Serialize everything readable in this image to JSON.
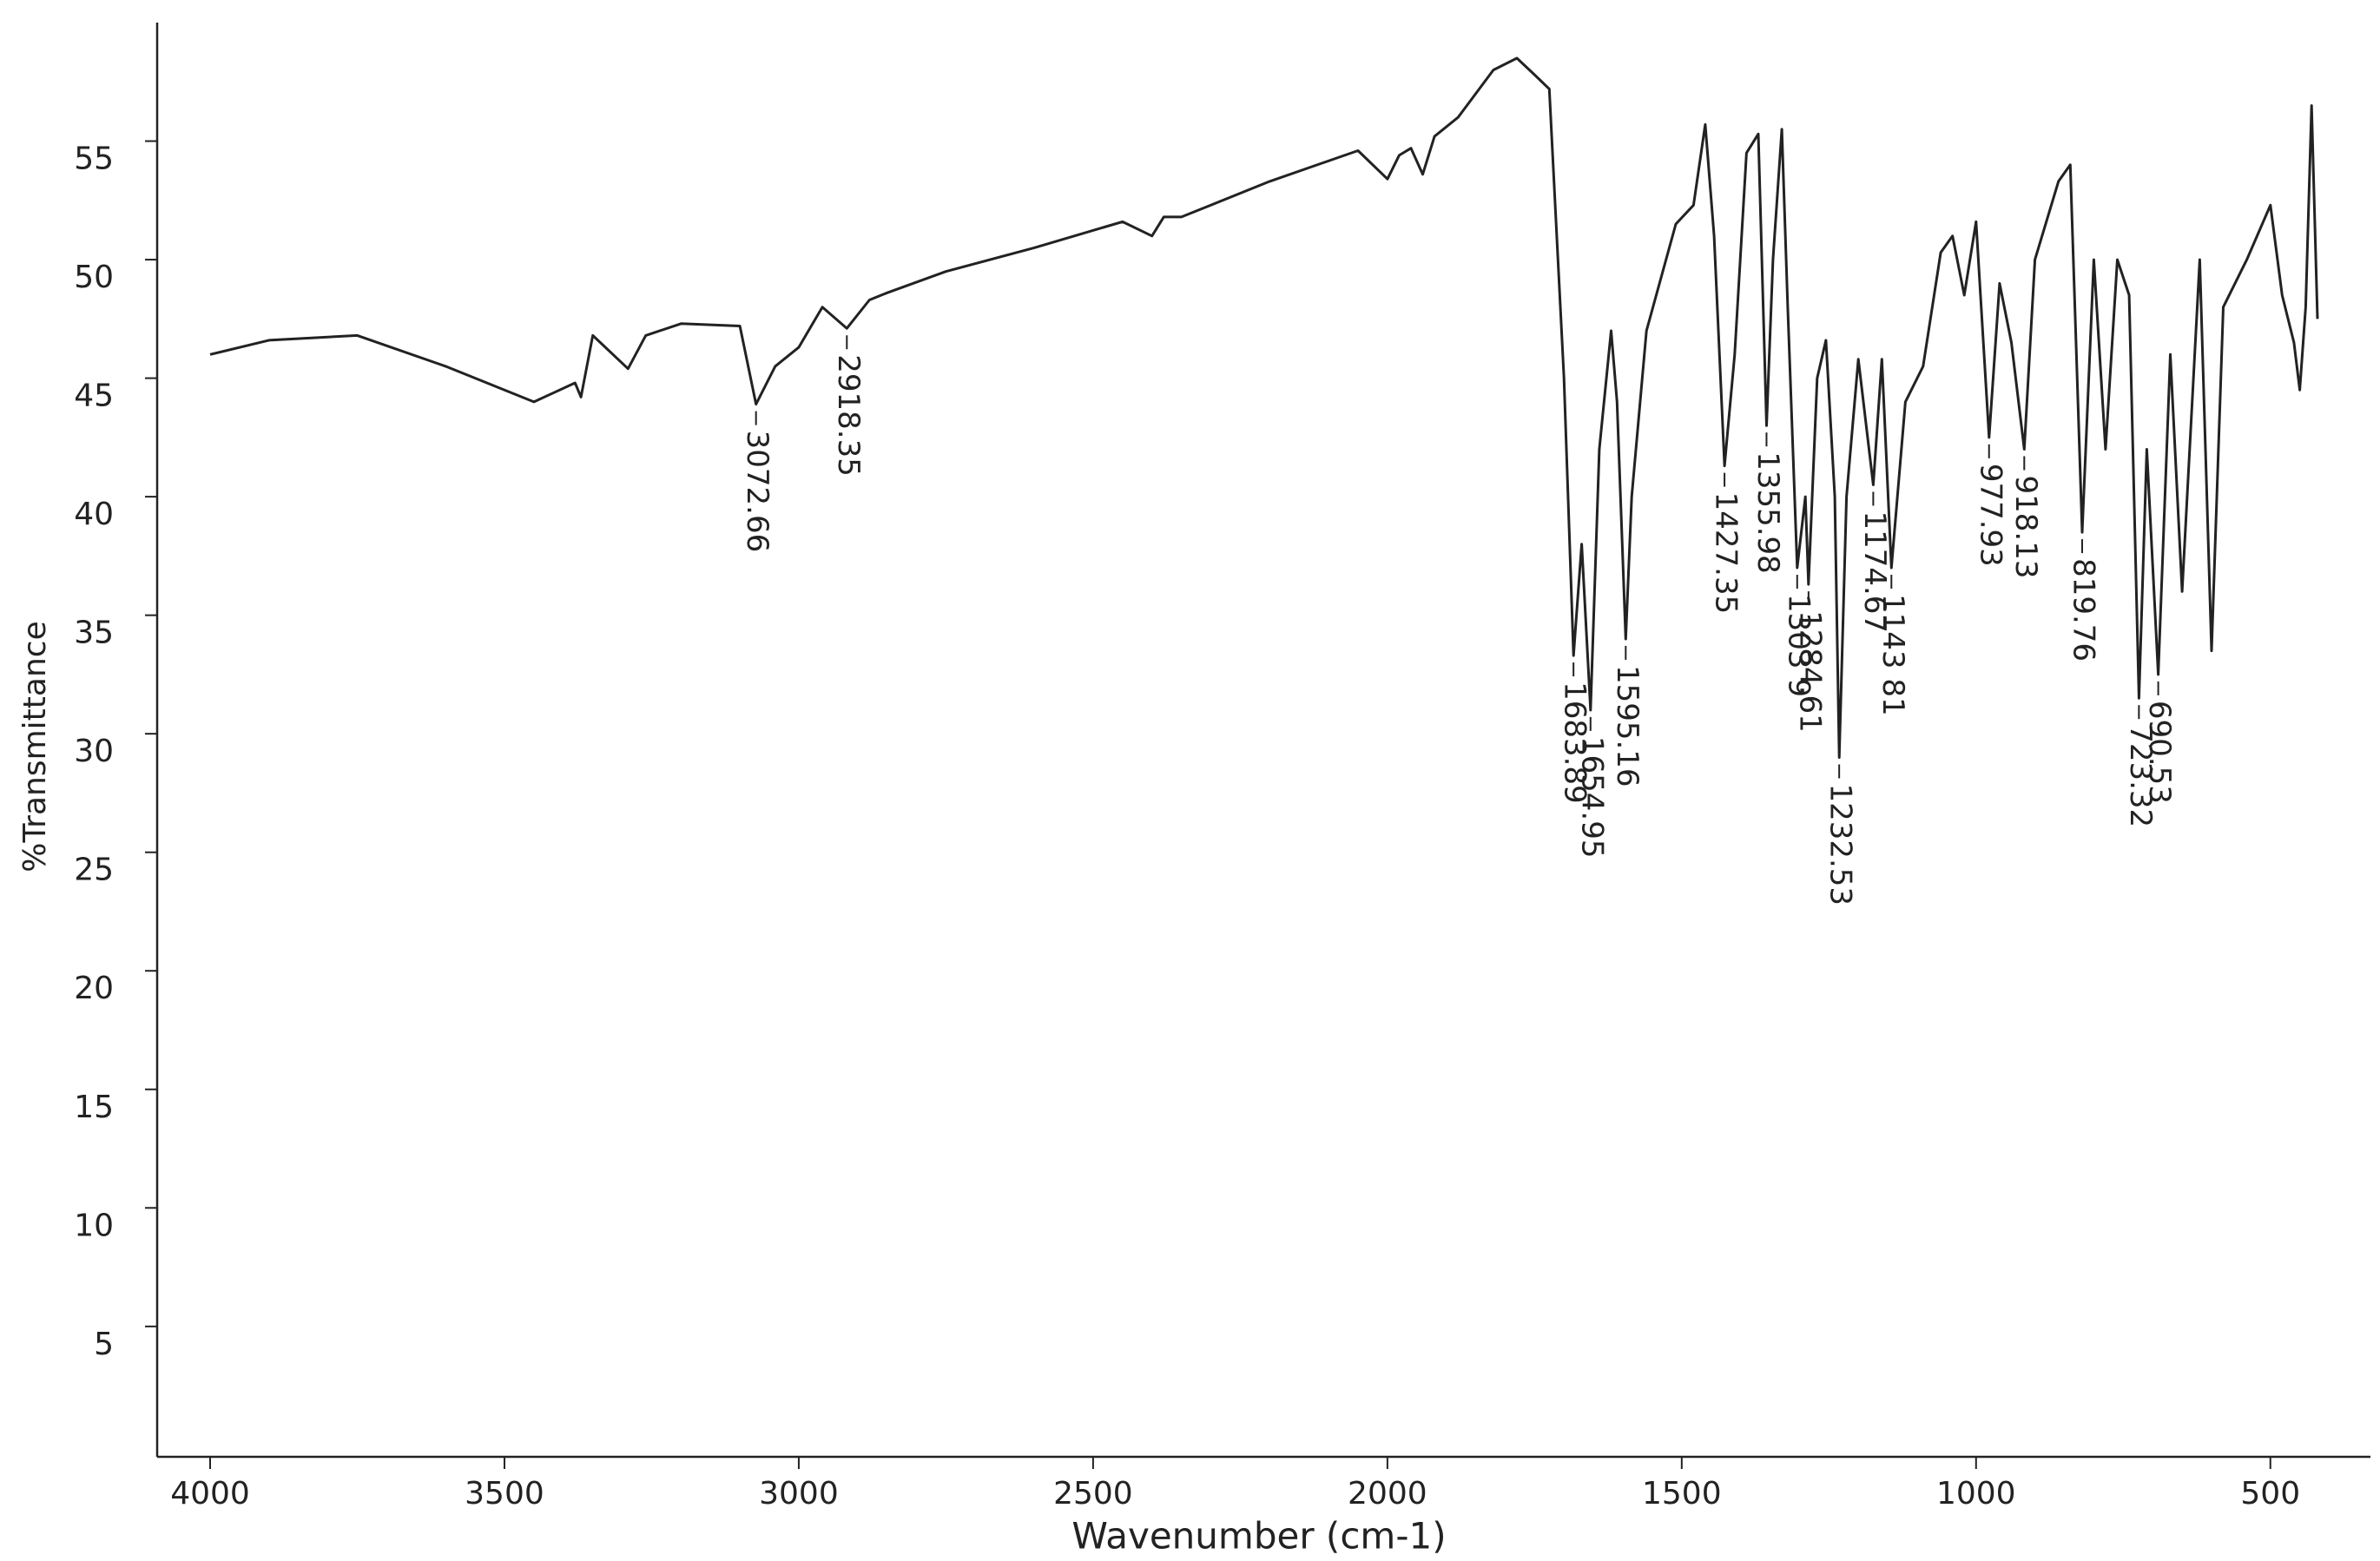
{
  "chart_data": {
    "type": "line",
    "x_label": "Wavenumber (cm-1)",
    "y_label": "%Transmittance",
    "color": "#222222",
    "x": [
      4000,
      3900,
      3750,
      3600,
      3450,
      3380,
      3370,
      3350,
      3290,
      3260,
      3200,
      3100,
      3072.66,
      3040,
      3000,
      2960,
      2918.35,
      2880,
      2850,
      2750,
      2600,
      2450,
      2400,
      2380,
      2350,
      2200,
      2050,
      2000,
      1980,
      1960,
      1940,
      1920,
      1880,
      1820,
      1780,
      1750,
      1725,
      1700,
      1683.89,
      1670,
      1654.95,
      1640,
      1620,
      1610,
      1595.16,
      1585,
      1560,
      1510,
      1480,
      1460,
      1445,
      1427.35,
      1410,
      1390,
      1370,
      1355.98,
      1345,
      1330,
      1320,
      1303.9,
      1290,
      1284.61,
      1270,
      1255,
      1240,
      1232.53,
      1220,
      1200,
      1174.67,
      1160,
      1143.81,
      1120,
      1090,
      1060,
      1040,
      1020,
      1000,
      977.93,
      960,
      940,
      918.13,
      900,
      860,
      840,
      819.76,
      800,
      780,
      760,
      740,
      723.32,
      710,
      690.53,
      670,
      650,
      620,
      600,
      580,
      540,
      500,
      480,
      460,
      450,
      440,
      430,
      420
    ],
    "values": [
      46,
      46.6,
      46.8,
      45.5,
      44,
      44.8,
      44.2,
      46.8,
      45.4,
      46.8,
      47.3,
      47.2,
      43.9,
      45.5,
      46.3,
      48,
      47.1,
      48.3,
      48.6,
      49.5,
      50.5,
      51.6,
      51,
      51.8,
      51.8,
      53.3,
      54.6,
      53.4,
      54.4,
      54.7,
      53.6,
      55.2,
      56,
      58,
      58.5,
      57.8,
      57.2,
      45,
      33.3,
      38,
      31,
      42,
      47,
      44,
      34,
      40,
      47,
      51.5,
      52.3,
      55.7,
      51,
      41.3,
      46,
      54.5,
      55.3,
      43,
      50,
      55.5,
      48,
      37,
      40,
      36.3,
      45,
      46.6,
      40,
      29,
      40,
      45.8,
      40.5,
      45.8,
      37,
      44,
      45.5,
      50.3,
      51,
      48.5,
      51.6,
      42.5,
      49,
      46.5,
      42,
      50,
      53.3,
      54,
      38.5,
      50,
      42,
      50,
      48.5,
      31.5,
      42,
      32.5,
      46,
      36,
      50,
      33.5,
      48,
      50,
      52.3,
      48.5,
      46.5,
      44.5,
      48,
      56.5,
      47.5
    ],
    "annotations": [
      {
        "x": 3072.66,
        "label": "3072.66"
      },
      {
        "x": 2918.35,
        "label": "2918.35"
      },
      {
        "x": 1683.89,
        "label": "1683.89"
      },
      {
        "x": 1654.95,
        "label": "1654.95"
      },
      {
        "x": 1595.16,
        "label": "1595.16"
      },
      {
        "x": 1427.35,
        "label": "1427.35"
      },
      {
        "x": 1355.98,
        "label": "1355.98"
      },
      {
        "x": 1303.9,
        "label": "1303 9"
      },
      {
        "x": 1284.61,
        "label": "1284.61"
      },
      {
        "x": 1232.53,
        "label": "1232.53"
      },
      {
        "x": 1174.67,
        "label": "1174.67"
      },
      {
        "x": 1143.81,
        "label": "1143 81"
      },
      {
        "x": 977.93,
        "label": "977.93"
      },
      {
        "x": 918.13,
        "label": "918.13"
      },
      {
        "x": 819.76,
        "label": "819.76"
      },
      {
        "x": 723.32,
        "label": "723.32"
      },
      {
        "x": 690.53,
        "label": "690.53"
      }
    ],
    "xlim": [
      4090,
      330
    ],
    "ylim": [
      -0.5,
      60
    ],
    "xticks": [
      4000,
      3500,
      3000,
      2500,
      2000,
      1500,
      1000,
      500
    ],
    "yticks": [
      5,
      10,
      15,
      20,
      25,
      30,
      35,
      40,
      45,
      50,
      55
    ],
    "grid": false
  }
}
